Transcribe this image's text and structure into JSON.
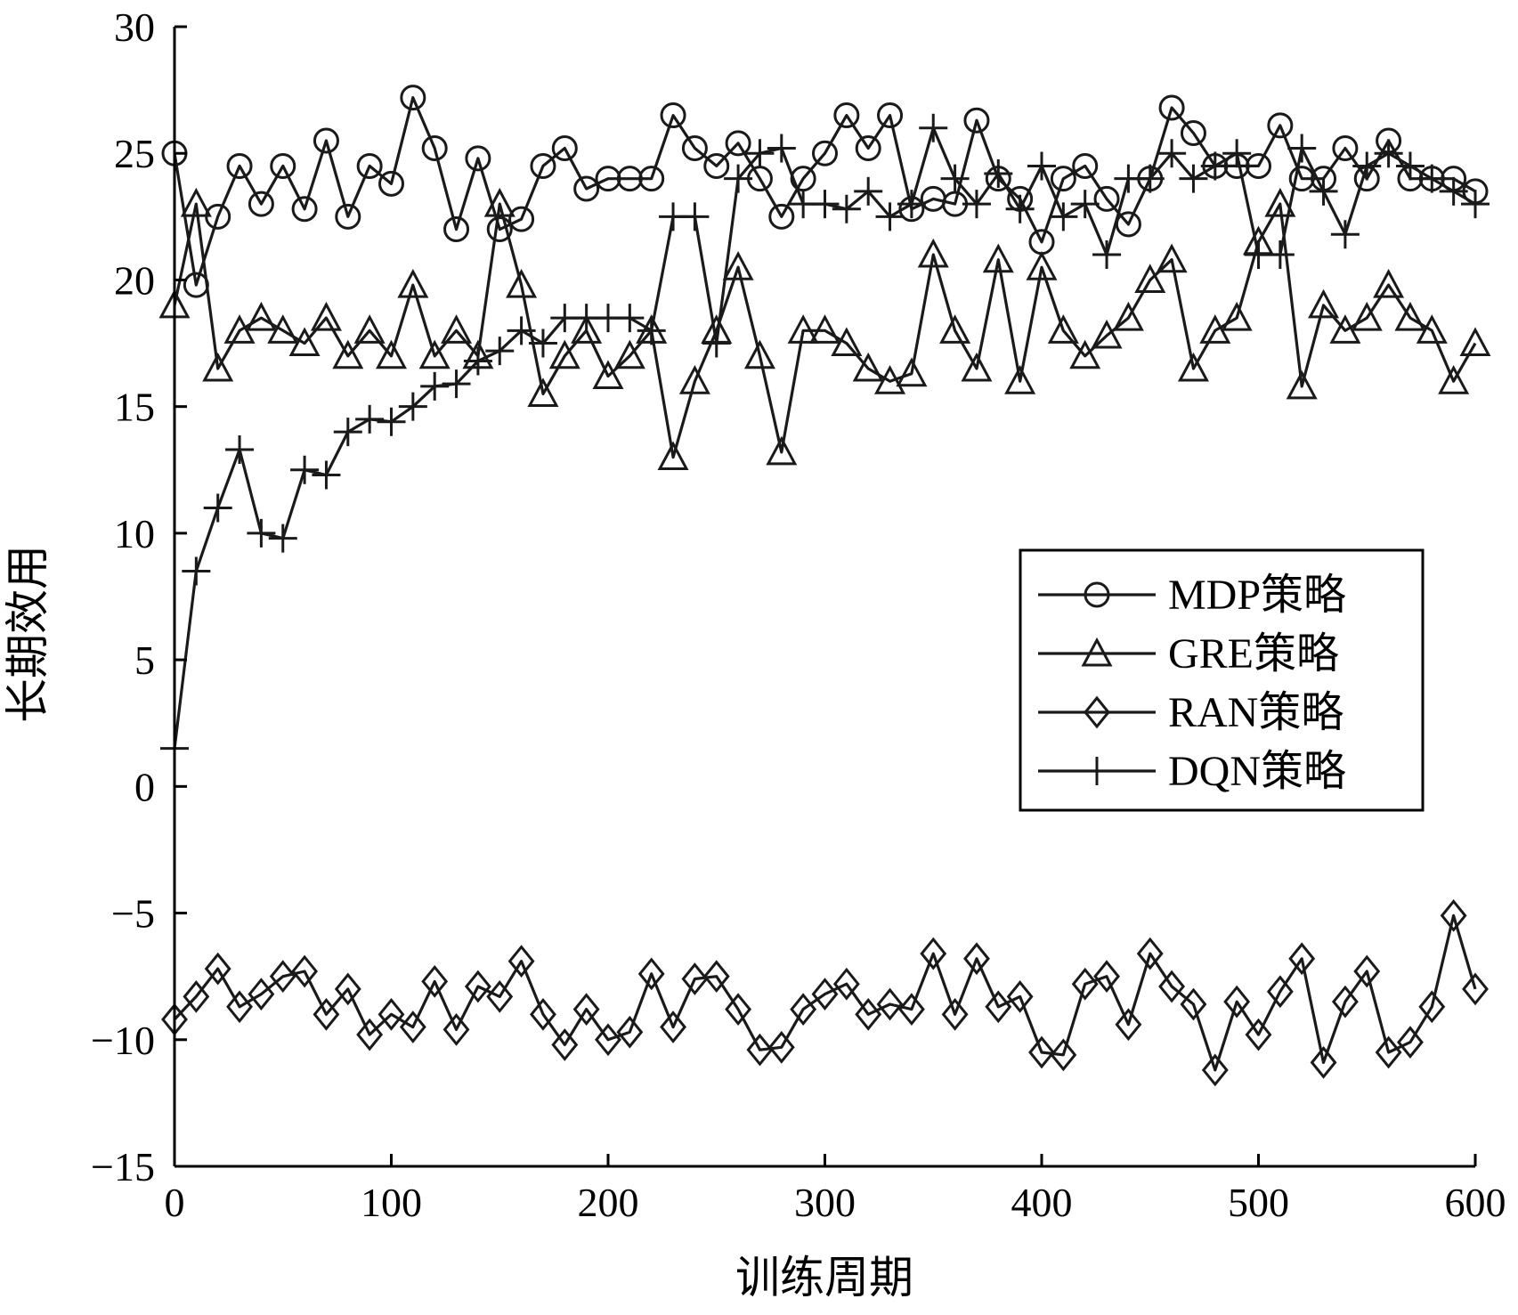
{
  "chart_data": {
    "type": "line",
    "title": "",
    "xlabel": "训练周期",
    "ylabel": "长期效用",
    "xlim": [
      0,
      600
    ],
    "ylim": [
      -15,
      30
    ],
    "xticks": [
      0,
      100,
      200,
      300,
      400,
      500,
      600
    ],
    "xtick_labels": [
      "0",
      "100",
      "200",
      "300",
      "400",
      "500",
      "600"
    ],
    "yticks": [
      -15,
      -10,
      -5,
      0,
      5,
      10,
      15,
      20,
      25,
      30
    ],
    "ytick_labels": [
      "−15",
      "−10",
      "−5",
      "0",
      "5",
      "10",
      "15",
      "20",
      "25",
      "30"
    ],
    "grid": false,
    "legend_position": "center-right",
    "line_color": "#1a1a1a",
    "series": [
      {
        "name": "MDP策略",
        "marker": "circle",
        "x": [
          0,
          10,
          20,
          30,
          40,
          50,
          60,
          70,
          80,
          90,
          100,
          110,
          120,
          130,
          140,
          150,
          160,
          170,
          180,
          190,
          200,
          210,
          220,
          230,
          240,
          250,
          260,
          270,
          280,
          290,
          300,
          310,
          320,
          330,
          340,
          350,
          360,
          370,
          380,
          390,
          400,
          410,
          420,
          430,
          440,
          450,
          460,
          470,
          480,
          490,
          500,
          510,
          520,
          530,
          540,
          550,
          560,
          570,
          580,
          590,
          600
        ],
        "values": [
          25.0,
          19.8,
          22.5,
          24.5,
          23.0,
          24.5,
          22.8,
          25.5,
          22.5,
          24.5,
          23.8,
          27.2,
          25.2,
          22.0,
          24.8,
          22.0,
          22.4,
          24.5,
          25.2,
          23.6,
          24.0,
          24.0,
          24.0,
          26.5,
          25.2,
          24.5,
          25.4,
          24.0,
          22.5,
          24.0,
          25.0,
          26.5,
          25.2,
          26.5,
          22.8,
          23.2,
          23.0,
          26.3,
          24.0,
          23.2,
          21.5,
          24.0,
          24.5,
          23.2,
          22.2,
          24.0,
          26.8,
          25.8,
          24.5,
          24.5,
          24.5,
          26.1,
          24.0,
          24.0,
          25.2,
          24.0,
          25.5,
          24.0,
          24.0,
          24.0,
          23.5
        ]
      },
      {
        "name": "GRE策略",
        "marker": "triangle",
        "x": [
          0,
          10,
          20,
          30,
          40,
          50,
          60,
          70,
          80,
          90,
          100,
          110,
          120,
          130,
          140,
          150,
          160,
          170,
          180,
          190,
          200,
          210,
          220,
          230,
          240,
          250,
          260,
          270,
          280,
          290,
          300,
          310,
          320,
          330,
          340,
          350,
          360,
          370,
          380,
          390,
          400,
          410,
          420,
          430,
          440,
          450,
          460,
          470,
          480,
          490,
          500,
          510,
          520,
          530,
          540,
          550,
          560,
          570,
          580,
          590,
          600
        ],
        "values": [
          19.0,
          23.0,
          16.5,
          18.0,
          18.5,
          18.0,
          17.5,
          18.5,
          17.0,
          18.0,
          17.0,
          19.8,
          17.0,
          18.0,
          17.0,
          23.0,
          19.8,
          15.5,
          17.0,
          18.0,
          16.2,
          17.0,
          18.0,
          13.0,
          16.0,
          18.0,
          20.5,
          17.0,
          13.2,
          18.0,
          18.0,
          17.5,
          16.5,
          16.0,
          16.3,
          21.0,
          18.0,
          16.5,
          20.8,
          16.0,
          20.5,
          18.0,
          17.0,
          17.8,
          18.5,
          20.0,
          20.8,
          16.5,
          18.0,
          18.5,
          21.5,
          23.0,
          15.8,
          19.0,
          18.0,
          18.5,
          19.8,
          18.5,
          18.0,
          16.0,
          17.5
        ]
      },
      {
        "name": "RAN策略",
        "marker": "diamond",
        "x": [
          0,
          10,
          20,
          30,
          40,
          50,
          60,
          70,
          80,
          90,
          100,
          110,
          120,
          130,
          140,
          150,
          160,
          170,
          180,
          190,
          200,
          210,
          220,
          230,
          240,
          250,
          260,
          270,
          280,
          290,
          300,
          310,
          320,
          330,
          340,
          350,
          360,
          370,
          380,
          390,
          400,
          410,
          420,
          430,
          440,
          450,
          460,
          470,
          480,
          490,
          500,
          510,
          520,
          530,
          540,
          550,
          560,
          570,
          580,
          590,
          600
        ],
        "values": [
          -9.2,
          -8.3,
          -7.2,
          -8.7,
          -8.2,
          -7.5,
          -7.3,
          -9.0,
          -8.0,
          -9.8,
          -9.0,
          -9.5,
          -7.7,
          -9.6,
          -7.9,
          -8.3,
          -6.9,
          -9.0,
          -10.2,
          -8.8,
          -10.0,
          -9.7,
          -7.4,
          -9.5,
          -7.6,
          -7.5,
          -8.8,
          -10.4,
          -10.3,
          -8.8,
          -8.2,
          -7.8,
          -9.0,
          -8.6,
          -8.8,
          -6.6,
          -9.0,
          -6.8,
          -8.7,
          -8.3,
          -10.5,
          -10.6,
          -7.8,
          -7.5,
          -9.4,
          -6.6,
          -7.9,
          -8.6,
          -11.2,
          -8.5,
          -9.8,
          -8.1,
          -6.8,
          -10.9,
          -8.5,
          -7.3,
          -10.5,
          -10.1,
          -8.7,
          -5.1,
          -8.0
        ]
      },
      {
        "name": "DQN策略",
        "marker": "plus",
        "x": [
          0,
          10,
          20,
          30,
          40,
          50,
          60,
          70,
          80,
          90,
          100,
          110,
          120,
          130,
          140,
          150,
          160,
          170,
          180,
          190,
          200,
          210,
          220,
          230,
          240,
          250,
          260,
          270,
          280,
          290,
          300,
          310,
          320,
          330,
          340,
          350,
          360,
          370,
          380,
          390,
          400,
          410,
          420,
          430,
          440,
          450,
          460,
          470,
          480,
          490,
          500,
          510,
          520,
          530,
          540,
          550,
          560,
          570,
          580,
          590,
          600
        ],
        "values": [
          1.5,
          8.5,
          11.0,
          13.3,
          10.0,
          9.8,
          12.5,
          12.3,
          14.0,
          14.5,
          14.4,
          15.0,
          15.8,
          15.9,
          16.8,
          17.2,
          18.0,
          17.5,
          18.5,
          18.5,
          18.5,
          18.5,
          18.0,
          22.5,
          22.5,
          17.5,
          24.0,
          25.0,
          25.2,
          23.0,
          23.0,
          22.8,
          23.5,
          22.5,
          23.0,
          26.0,
          24.0,
          23.0,
          24.2,
          22.8,
          24.5,
          22.5,
          23.0,
          21.0,
          24.0,
          24.0,
          25.0,
          24.0,
          24.5,
          25.0,
          21.0,
          21.0,
          25.2,
          23.5,
          21.8,
          24.5,
          25.0,
          24.5,
          24.0,
          23.5,
          23.0
        ]
      }
    ]
  }
}
